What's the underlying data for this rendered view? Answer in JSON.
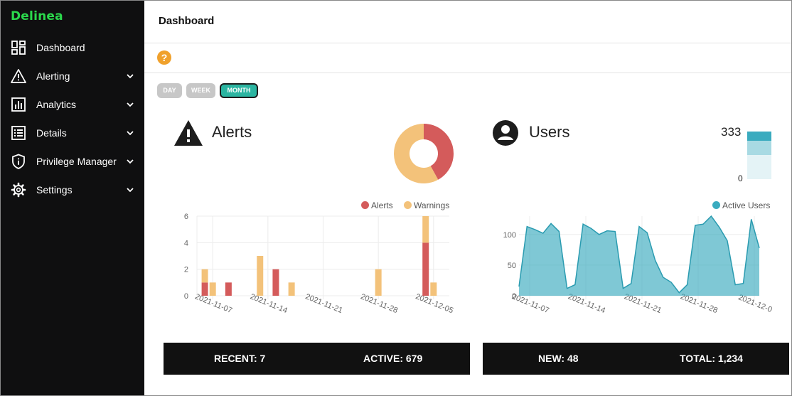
{
  "app": {
    "logo": "Delinea"
  },
  "sidebar": {
    "items": [
      {
        "label": "Dashboard",
        "icon": "dashboard-icon",
        "expandable": false
      },
      {
        "label": "Alerting",
        "icon": "warning-triangle-icon",
        "expandable": true
      },
      {
        "label": "Analytics",
        "icon": "bar-chart-icon",
        "expandable": true
      },
      {
        "label": "Details",
        "icon": "list-icon",
        "expandable": true
      },
      {
        "label": "Privilege Manager",
        "icon": "shield-info-icon",
        "expandable": true
      },
      {
        "label": "Settings",
        "icon": "gear-icon",
        "expandable": true
      }
    ]
  },
  "header": {
    "title": "Dashboard",
    "help": "?"
  },
  "range": {
    "options": [
      "DAY",
      "WEEK",
      "MONTH"
    ],
    "selected": "MONTH"
  },
  "colors": {
    "accent": "#2bb5a1",
    "brand": "#2bd94c",
    "alerts": "#d45b5b",
    "warnings": "#f3c27a",
    "active_users": "#3aabbf",
    "help": "#f0a12c"
  },
  "alerts_panel": {
    "title": "Alerts",
    "icon": "warning-triangle-icon",
    "donut": [
      {
        "name": "Alerts",
        "value": 42
      },
      {
        "name": "Warnings",
        "value": 58
      }
    ],
    "stats": {
      "recent": "RECENT: 7",
      "active": "ACTIVE: 679"
    }
  },
  "users_panel": {
    "title": "Users",
    "icon": "user-circle-icon",
    "mini_scale": {
      "top": "333",
      "bottom": "0"
    },
    "stats": {
      "new": "NEW: 48",
      "total": "TOTAL: 1,234"
    }
  },
  "chart_data": [
    {
      "type": "bar",
      "stacked": true,
      "x_tick_labels": [
        "2021-11-07",
        "2021-11-14",
        "2021-11-21",
        "2021-11-28",
        "2021-12-05"
      ],
      "y_ticks": [
        0,
        2,
        4,
        6
      ],
      "ylim": [
        0,
        6
      ],
      "legend": "top-right",
      "grid": true,
      "categories": [
        "2021-11-06",
        "2021-11-07",
        "2021-11-09",
        "2021-11-13",
        "2021-11-15",
        "2021-11-17",
        "2021-11-28",
        "2021-12-04",
        "2021-12-05"
      ],
      "series": [
        {
          "name": "Alerts",
          "values": [
            1,
            0,
            1,
            0,
            2,
            0,
            0,
            4,
            0
          ]
        },
        {
          "name": "Warnings",
          "values": [
            1,
            1,
            0,
            3,
            0,
            1,
            2,
            2,
            1
          ]
        }
      ]
    },
    {
      "type": "area",
      "x_tick_labels": [
        "2021-11-07",
        "2021-11-14",
        "2021-11-21",
        "2021-11-28",
        "2021-12-0"
      ],
      "y_ticks": [
        0,
        50,
        100
      ],
      "ylim": [
        0,
        130
      ],
      "legend": "top-right",
      "grid": true,
      "series": [
        {
          "name": "Active Users",
          "values": [
            15,
            113,
            108,
            102,
            118,
            105,
            12,
            18,
            117,
            110,
            100,
            106,
            105,
            12,
            20,
            113,
            103,
            58,
            30,
            22,
            5,
            18,
            115,
            117,
            130,
            112,
            90,
            18,
            20,
            125,
            78
          ]
        }
      ]
    }
  ]
}
